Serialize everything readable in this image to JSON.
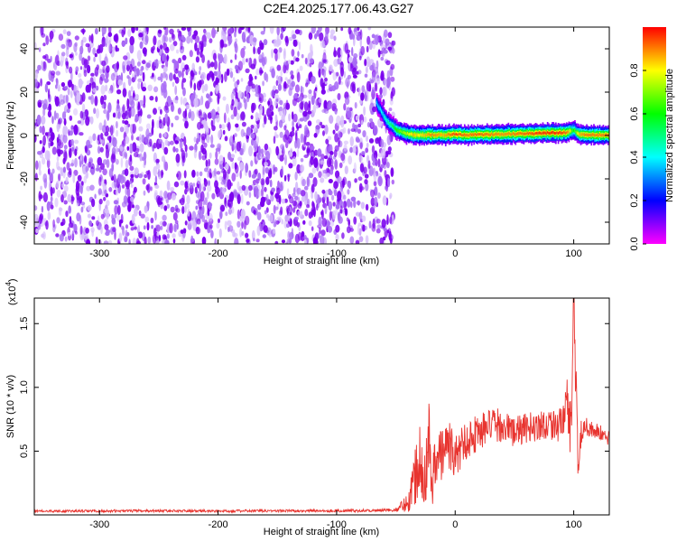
{
  "chart_data": [
    {
      "type": "heatmap",
      "title": "C2E4.2025.177.06.43.G27",
      "xlabel": "Height of straight line (km)",
      "ylabel": "Frequency (Hz)",
      "xlim": [
        -355,
        130
      ],
      "ylim": [
        -50,
        50
      ],
      "xticks": [
        -300,
        -200,
        -100,
        0,
        100
      ],
      "yticks": [
        -40,
        -20,
        0,
        20,
        40
      ],
      "colorbar": {
        "label": "Normalized spectral amplitude",
        "range": [
          0.0,
          1.0
        ],
        "ticks": [
          0.0,
          0.2,
          0.4,
          0.6,
          0.8
        ],
        "colormap": [
          "#ff00ff",
          "#0000ff",
          "#00ffff",
          "#00ff00",
          "#ffff00",
          "#ff0000"
        ]
      },
      "noise_region": {
        "x": [
          -355,
          -52
        ],
        "y": [
          -50,
          50
        ],
        "level": [
          0.0,
          0.25
        ],
        "colors": [
          "#7a00ee",
          "#a86cf5",
          "#d8c0fb"
        ]
      },
      "signal_trace": {
        "x": [
          -66,
          -62,
          -58,
          -54,
          -50,
          -45,
          -40,
          -35,
          -30,
          -20,
          -10,
          0,
          10,
          20,
          30,
          40,
          50,
          60,
          70,
          80,
          90,
          95,
          100,
          105,
          110,
          120,
          130
        ],
        "frequency": [
          15,
          11,
          7,
          5,
          3,
          1.5,
          0.8,
          0.4,
          0.2,
          0.3,
          0.2,
          0.6,
          0.3,
          0.4,
          0.5,
          0.6,
          0.8,
          0.9,
          1.0,
          1.2,
          1.1,
          1.5,
          2.5,
          0.5,
          0.3,
          0.2,
          0.2
        ],
        "amplitude": [
          0.35,
          0.4,
          0.45,
          0.5,
          0.6,
          0.7,
          0.75,
          0.85,
          0.8,
          0.9,
          0.85,
          0.95,
          0.9,
          0.92,
          0.9,
          0.88,
          0.9,
          0.92,
          0.95,
          0.97,
          0.95,
          0.9,
          0.6,
          0.85,
          0.9,
          0.9,
          0.9
        ]
      }
    },
    {
      "type": "line",
      "xlabel": "Height of straight line (km)",
      "ylabel": "SNR (10 * v/v)",
      "y_multiplier": "(x10",
      "y_multiplier_exp": "4",
      "y_multiplier_close": ")",
      "xlim": [
        -355,
        130
      ],
      "ylim": [
        0,
        17000
      ],
      "xticks": [
        -300,
        -200,
        -100,
        0,
        100
      ],
      "yticks": [
        5000,
        10000,
        15000
      ],
      "ytick_labels": [
        "0.5",
        "1.0",
        "1.5"
      ],
      "series": [
        {
          "color": "#e8342f",
          "x": [
            -355,
            -300,
            -250,
            -200,
            -150,
            -100,
            -60,
            -50,
            -40,
            -35,
            -30,
            -25,
            -22,
            -20,
            -15,
            -10,
            -5,
            0,
            10,
            20,
            30,
            40,
            50,
            60,
            70,
            80,
            90,
            95,
            98,
            100,
            102,
            104,
            106,
            110,
            120,
            130
          ],
          "y": [
            300,
            300,
            320,
            300,
            320,
            330,
            350,
            400,
            1000,
            2500,
            5000,
            3000,
            6500,
            2500,
            4500,
            5000,
            5500,
            4500,
            6000,
            6500,
            7000,
            7000,
            6500,
            6800,
            7000,
            7200,
            7000,
            9000,
            5000,
            17000,
            9500,
            2500,
            6500,
            7000,
            6500,
            6000
          ],
          "noise": [
            80,
            100,
            100,
            100,
            100,
            110,
            120,
            150,
            800,
            2200,
            3200,
            2500,
            3000,
            2000,
            2400,
            2200,
            2000,
            1800,
            1600,
            1500,
            1400,
            1300,
            1200,
            1200,
            1200,
            1300,
            1300,
            2500,
            3000,
            0,
            3000,
            1200,
            1200,
            800,
            700,
            600
          ]
        }
      ]
    }
  ]
}
